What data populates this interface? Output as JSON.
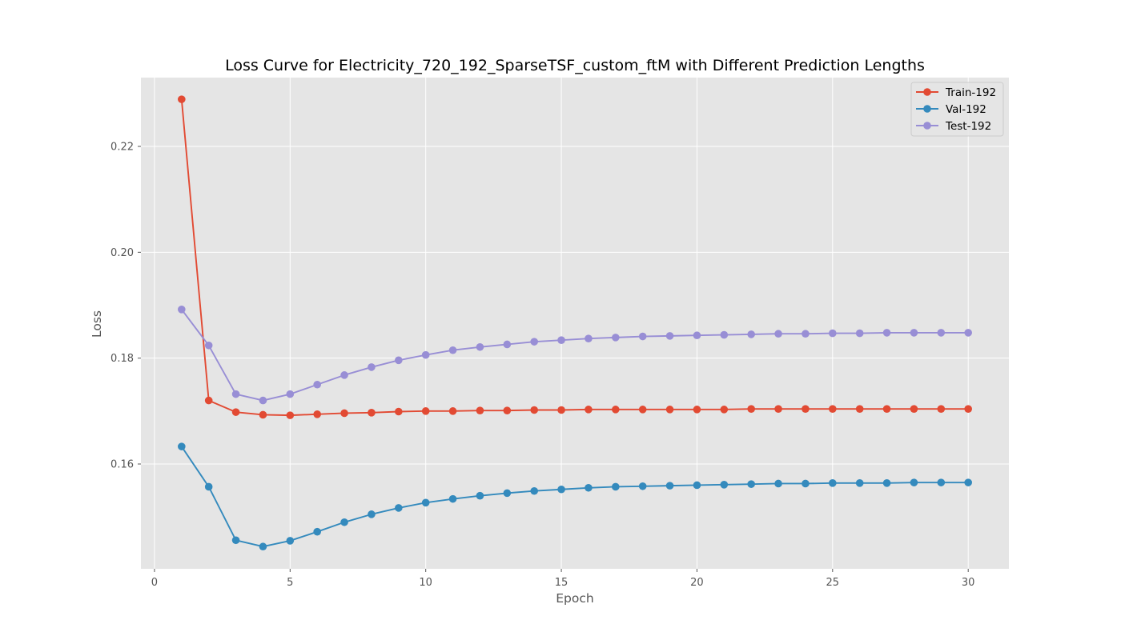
{
  "chart_data": {
    "type": "line",
    "title": "Loss Curve for Electricity_720_192_SparseTSF_custom_ftM with Different Prediction Lengths",
    "xlabel": "Epoch",
    "ylabel": "Loss",
    "xlim": [
      -0.5,
      31.5
    ],
    "ylim": [
      0.1402,
      0.233
    ],
    "x_ticks": [
      0,
      5,
      10,
      15,
      20,
      25,
      30
    ],
    "y_ticks": [
      0.16,
      0.18,
      0.2,
      0.22
    ],
    "y_tick_labels": [
      "0.16",
      "0.18",
      "0.20",
      "0.22"
    ],
    "grid": true,
    "legend_position": "top-right",
    "x": [
      1,
      2,
      3,
      4,
      5,
      6,
      7,
      8,
      9,
      10,
      11,
      12,
      13,
      14,
      15,
      16,
      17,
      18,
      19,
      20,
      21,
      22,
      23,
      24,
      25,
      26,
      27,
      28,
      29,
      30
    ],
    "series": [
      {
        "name": "Train-192",
        "color": "#E24A33",
        "values": [
          0.2289,
          0.172,
          0.1698,
          0.1693,
          0.1692,
          0.1694,
          0.1696,
          0.1697,
          0.1699,
          0.17,
          0.17,
          0.1701,
          0.1701,
          0.1702,
          0.1702,
          0.1703,
          0.1703,
          0.1703,
          0.1703,
          0.1703,
          0.1703,
          0.1704,
          0.1704,
          0.1704,
          0.1704,
          0.1704,
          0.1704,
          0.1704,
          0.1704,
          0.1704
        ]
      },
      {
        "name": "Val-192",
        "color": "#348ABD",
        "values": [
          0.1633,
          0.1557,
          0.1456,
          0.1444,
          0.1455,
          0.1472,
          0.149,
          0.1505,
          0.1517,
          0.1527,
          0.1534,
          0.154,
          0.1545,
          0.1549,
          0.1552,
          0.1555,
          0.1557,
          0.1558,
          0.1559,
          0.156,
          0.1561,
          0.1562,
          0.1563,
          0.1563,
          0.1564,
          0.1564,
          0.1564,
          0.1565,
          0.1565,
          0.1565
        ]
      },
      {
        "name": "Test-192",
        "color": "#988ED5",
        "values": [
          0.1892,
          0.1824,
          0.1732,
          0.172,
          0.1732,
          0.175,
          0.1768,
          0.1783,
          0.1796,
          0.1806,
          0.1815,
          0.1821,
          0.1826,
          0.1831,
          0.1834,
          0.1837,
          0.1839,
          0.1841,
          0.1842,
          0.1843,
          0.1844,
          0.1845,
          0.1846,
          0.1846,
          0.1847,
          0.1847,
          0.1848,
          0.1848,
          0.1848,
          0.1848
        ]
      }
    ]
  }
}
